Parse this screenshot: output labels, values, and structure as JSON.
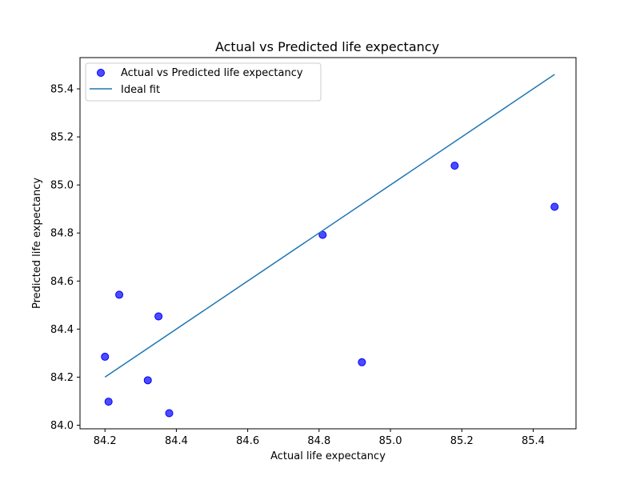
{
  "chart_data": {
    "type": "scatter",
    "title": "Actual vs Predicted life expectancy",
    "xlabel": "Actual life expectancy",
    "ylabel": "Predicted life expectancy",
    "xlim": [
      84.13,
      85.52
    ],
    "ylim": [
      83.985,
      85.53
    ],
    "xticks": [
      "84.2",
      "84.4",
      "84.6",
      "84.8",
      "85.0",
      "85.2",
      "85.4"
    ],
    "yticks": [
      "84.0",
      "84.2",
      "84.4",
      "84.6",
      "84.8",
      "85.0",
      "85.2",
      "85.4"
    ],
    "grid": false,
    "legend_position": "upper-left",
    "series": [
      {
        "name": "Actual vs Predicted life expectancy",
        "kind": "scatter",
        "color": "#0000ff",
        "points": [
          {
            "x": 84.2,
            "y": 84.285
          },
          {
            "x": 84.21,
            "y": 84.098
          },
          {
            "x": 84.24,
            "y": 84.543
          },
          {
            "x": 84.32,
            "y": 84.187
          },
          {
            "x": 84.35,
            "y": 84.453
          },
          {
            "x": 84.38,
            "y": 84.05
          },
          {
            "x": 84.81,
            "y": 84.792
          },
          {
            "x": 84.92,
            "y": 84.262
          },
          {
            "x": 85.18,
            "y": 85.08
          },
          {
            "x": 85.46,
            "y": 84.909
          }
        ]
      },
      {
        "name": "Ideal fit",
        "kind": "line",
        "color": "#1f77b4",
        "points": [
          {
            "x": 84.2,
            "y": 84.2
          },
          {
            "x": 85.46,
            "y": 85.46
          }
        ]
      }
    ]
  }
}
